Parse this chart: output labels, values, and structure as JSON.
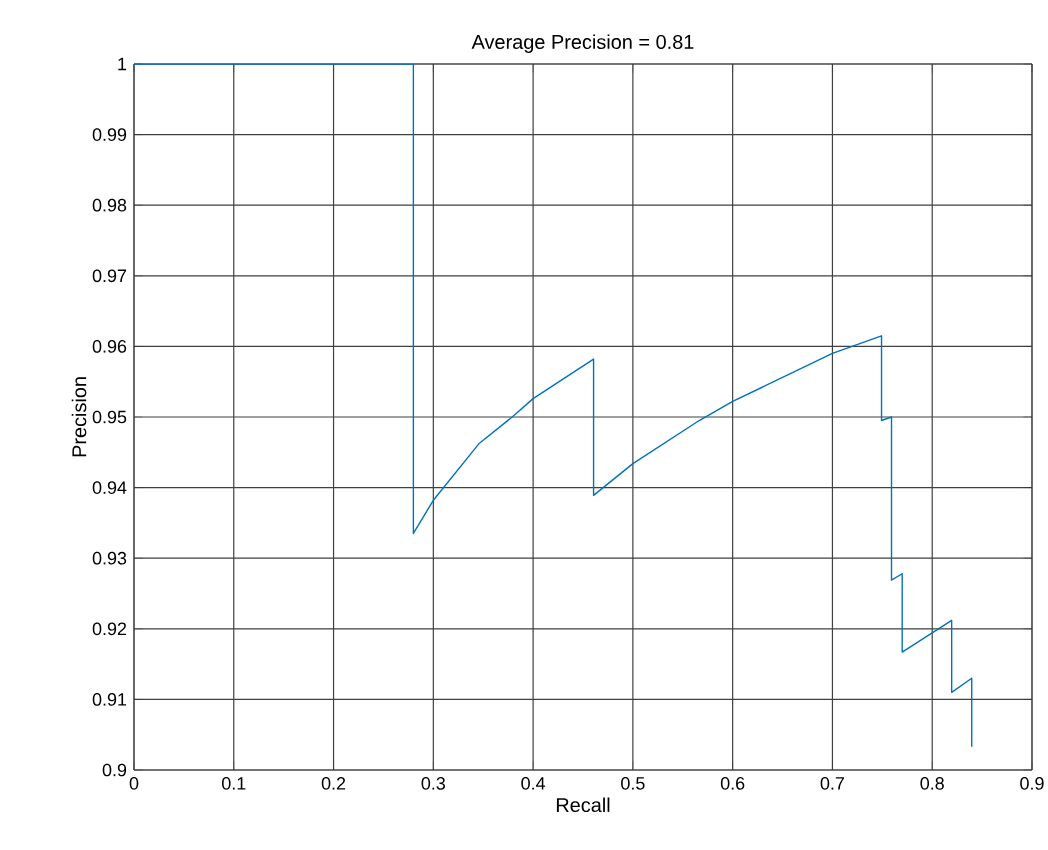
{
  "chart_data": {
    "type": "line",
    "title": "Average Precision = 0.81",
    "xlabel": "Recall",
    "ylabel": "Precision",
    "xlim": [
      0,
      0.9
    ],
    "ylim": [
      0.9,
      1
    ],
    "xticks": [
      0,
      0.1,
      0.2,
      0.3,
      0.4,
      0.5,
      0.6,
      0.7,
      0.8,
      0.9
    ],
    "yticks": [
      0.9,
      0.91,
      0.92,
      0.93,
      0.94,
      0.95,
      0.96,
      0.97,
      0.98,
      0.99,
      1
    ],
    "grid": true,
    "line_style": "solid",
    "marker": "none",
    "series": [
      {
        "color": "#0072bd",
        "x": [
          0,
          0.28,
          0.28,
          0.3,
          0.3456,
          0.379,
          0.4,
          0.4606,
          0.4606,
          0.5,
          0.5665,
          0.6,
          0.7,
          0.7492,
          0.7492,
          0.7592,
          0.7592,
          0.7699,
          0.7699,
          0.8195,
          0.8195,
          0.8396,
          0.8396
        ],
        "values": [
          1,
          1,
          0.9335,
          0.9382,
          0.9462,
          0.95,
          0.9526,
          0.9582,
          0.9389,
          0.9434,
          0.9495,
          0.9522,
          0.959,
          0.9615,
          0.9495,
          0.95,
          0.9269,
          0.9278,
          0.9167,
          0.9212,
          0.911,
          0.913,
          0.9033
        ]
      }
    ]
  }
}
